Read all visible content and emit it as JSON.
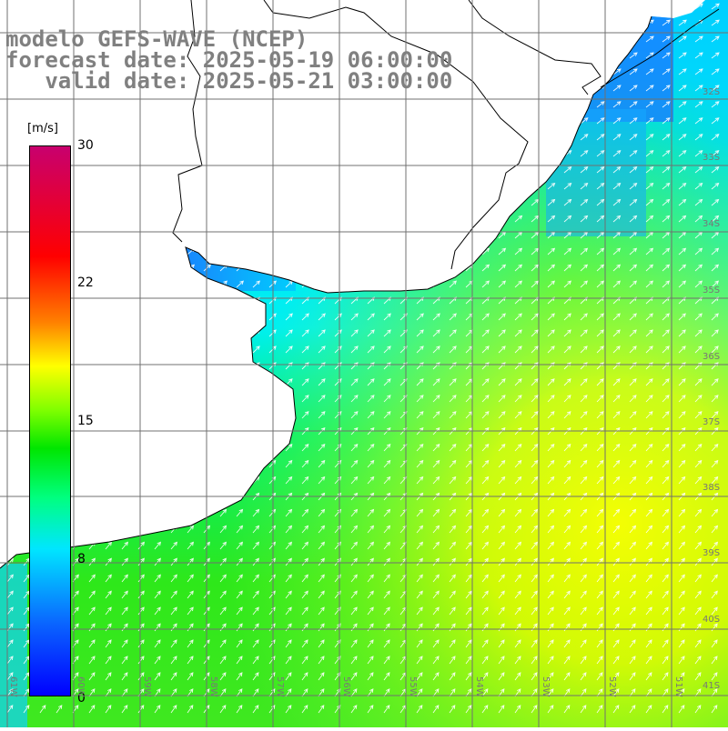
{
  "title": {
    "line1": "modelo GEFS-WAVE (NCEP)",
    "line2": "forecast date: 2025-05-19 06:00:00",
    "line3": "   valid date: 2025-05-21 03:00:00"
  },
  "colorbar": {
    "unit": "[m/s]",
    "labels": [
      "30",
      "22",
      "15",
      "8",
      "0"
    ],
    "min": 0,
    "max": 30
  },
  "lat_ticks": [
    "32S",
    "33S",
    "34S",
    "35S",
    "36S",
    "37S",
    "38S",
    "39S",
    "40S",
    "41S"
  ],
  "lon_ticks": [
    "61W",
    "60W",
    "59W",
    "58W",
    "57W",
    "56W",
    "55W",
    "54W",
    "53W",
    "52W",
    "51W"
  ],
  "colors": {
    "land": "#ffffff",
    "coastline": "#000000",
    "grid": "#707070",
    "arrow": "#ffffff",
    "title": "#808080"
  }
}
